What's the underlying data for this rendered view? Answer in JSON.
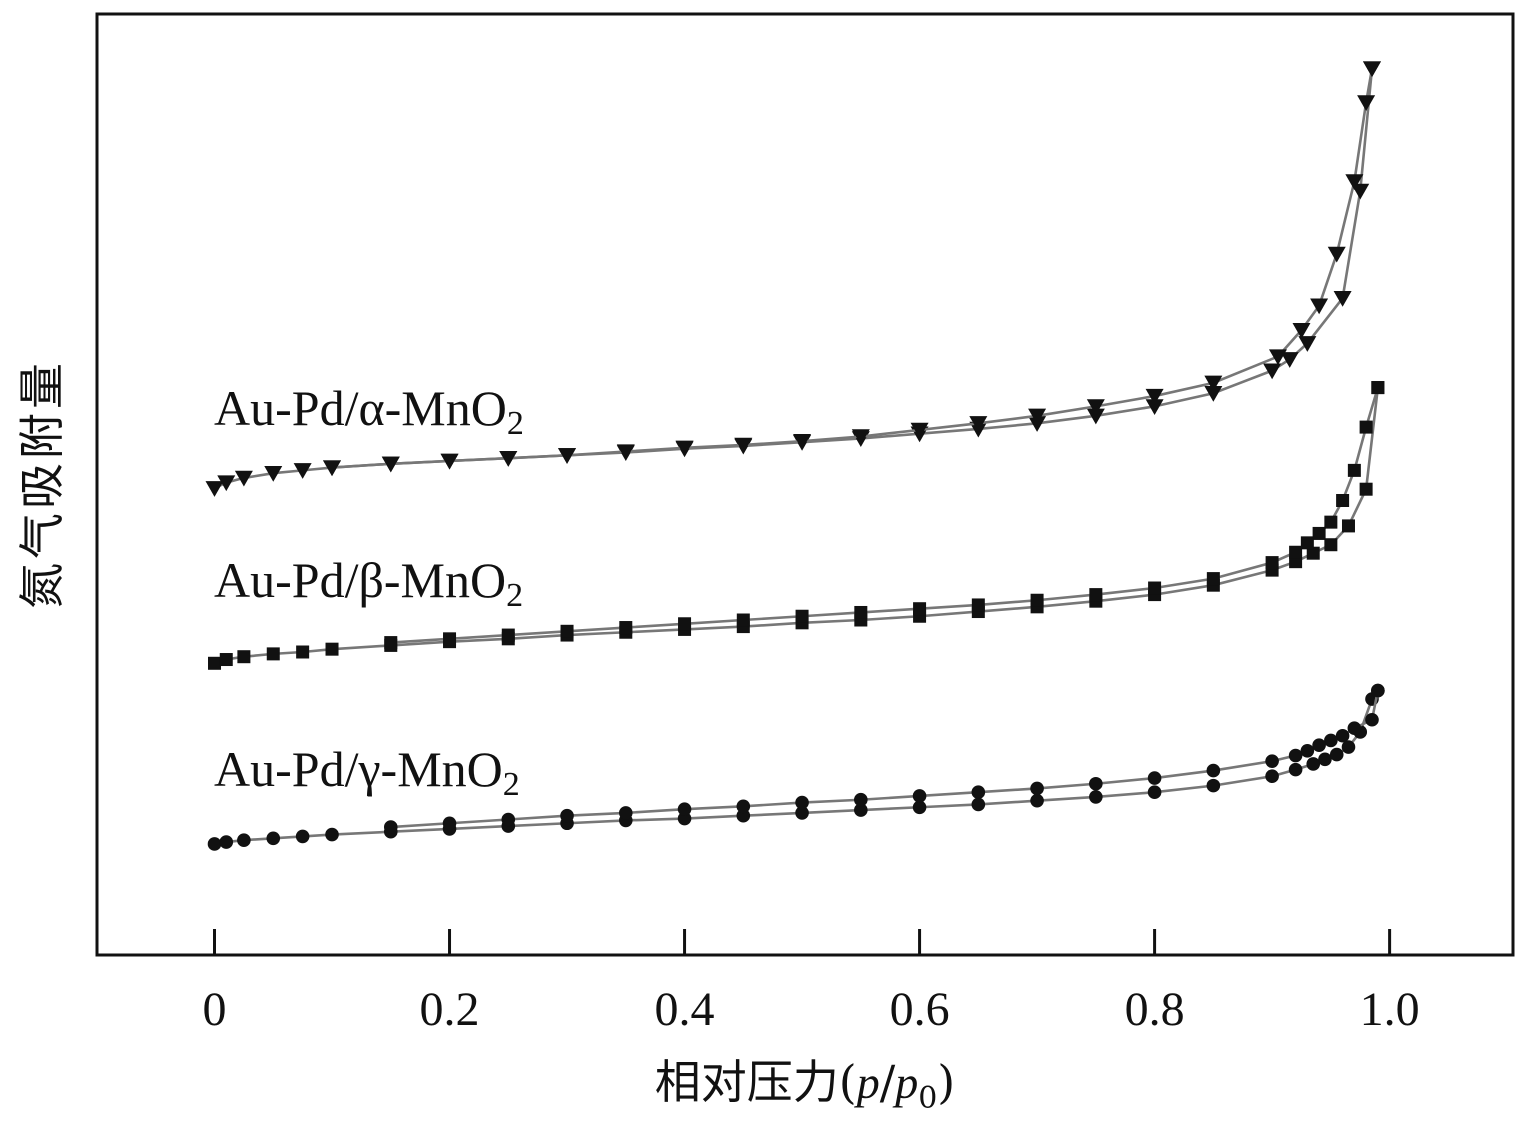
{
  "chart_data": {
    "type": "line",
    "xlabel": "相对压力(p/p0)",
    "xlabel_parts": {
      "prefix": "相对压力(",
      "p": "p",
      "slash": "/",
      "p0": "p",
      "sub": "0",
      "suffix": ")"
    },
    "ylabel": "氮气吸附量",
    "xlim": [
      -0.1,
      1.105
    ],
    "ylim": [
      0,
      100
    ],
    "x_ticks": [
      0,
      0.2,
      0.4,
      0.6,
      0.8,
      1.0
    ],
    "x_tick_labels": [
      "0",
      "0.2",
      "0.4",
      "0.6",
      "0.8",
      "1.0"
    ],
    "y_ticks": [],
    "grid": false,
    "series": [
      {
        "name": "Au-Pd/α-MnO2",
        "label_main": "Au-Pd/α-MnO",
        "label_sub": "2",
        "marker": "triangle-down",
        "adsorption": {
          "x": [
            0.0,
            0.01,
            0.025,
            0.05,
            0.075,
            0.1,
            0.15,
            0.2,
            0.25,
            0.3,
            0.35,
            0.4,
            0.45,
            0.5,
            0.55,
            0.6,
            0.65,
            0.7,
            0.75,
            0.8,
            0.85,
            0.9,
            0.915,
            0.93,
            0.96,
            0.975,
            0.985
          ],
          "y": [
            49.6,
            50.2,
            50.7,
            51.2,
            51.5,
            51.8,
            52.2,
            52.5,
            52.8,
            53.1,
            53.4,
            53.8,
            54.1,
            54.5,
            54.9,
            55.4,
            55.9,
            56.5,
            57.3,
            58.3,
            59.7,
            62.1,
            63.3,
            65.0,
            69.8,
            81.2,
            94.2
          ]
        },
        "desorption": {
          "x": [
            0.985,
            0.98,
            0.97,
            0.955,
            0.94,
            0.925,
            0.905,
            0.85,
            0.8,
            0.75,
            0.7,
            0.65,
            0.6,
            0.55,
            0.5,
            0.45,
            0.4,
            0.35,
            0.3,
            0.25,
            0.2,
            0.15,
            0.1
          ],
          "y": [
            94.2,
            90.6,
            82.2,
            74.5,
            69.0,
            66.4,
            63.6,
            60.8,
            59.4,
            58.3,
            57.3,
            56.5,
            55.8,
            55.1,
            54.6,
            54.2,
            53.9,
            53.5,
            53.1,
            52.8,
            52.5,
            52.2,
            51.8
          ]
        }
      },
      {
        "name": "Au-Pd/β-MnO2",
        "label_main": "Au-Pd/β-MnO",
        "label_sub": "2",
        "marker": "square",
        "adsorption": {
          "x": [
            0.0,
            0.01,
            0.025,
            0.05,
            0.075,
            0.1,
            0.15,
            0.2,
            0.25,
            0.3,
            0.35,
            0.4,
            0.45,
            0.5,
            0.55,
            0.6,
            0.65,
            0.7,
            0.75,
            0.8,
            0.85,
            0.9,
            0.92,
            0.935,
            0.95,
            0.965,
            0.98,
            0.99
          ],
          "y": [
            31.0,
            31.4,
            31.7,
            32.0,
            32.2,
            32.5,
            32.9,
            33.3,
            33.6,
            34.0,
            34.3,
            34.6,
            34.9,
            35.3,
            35.6,
            36.0,
            36.5,
            37.0,
            37.6,
            38.3,
            39.3,
            40.9,
            41.8,
            42.7,
            43.6,
            45.6,
            49.5,
            60.3
          ]
        },
        "desorption": {
          "x": [
            0.99,
            0.98,
            0.97,
            0.96,
            0.95,
            0.94,
            0.93,
            0.92,
            0.9,
            0.85,
            0.8,
            0.75,
            0.7,
            0.65,
            0.6,
            0.55,
            0.5,
            0.45,
            0.4,
            0.35,
            0.3,
            0.25,
            0.2,
            0.15
          ],
          "y": [
            60.3,
            56.1,
            51.5,
            48.3,
            46.0,
            44.8,
            43.8,
            42.8,
            41.7,
            40.0,
            39.0,
            38.3,
            37.7,
            37.2,
            36.8,
            36.4,
            36.0,
            35.6,
            35.2,
            34.8,
            34.4,
            34.0,
            33.6,
            33.2
          ]
        }
      },
      {
        "name": "Au-Pd/γ-MnO2",
        "label_main": "Au-Pd/γ-MnO",
        "label_sub": "2",
        "marker": "circle",
        "adsorption": {
          "x": [
            0.0,
            0.01,
            0.025,
            0.05,
            0.075,
            0.1,
            0.15,
            0.2,
            0.25,
            0.3,
            0.35,
            0.4,
            0.45,
            0.5,
            0.55,
            0.6,
            0.65,
            0.7,
            0.75,
            0.8,
            0.85,
            0.9,
            0.92,
            0.935,
            0.945,
            0.955,
            0.965,
            0.975,
            0.985,
            0.99
          ],
          "y": [
            11.8,
            12.0,
            12.2,
            12.4,
            12.6,
            12.8,
            13.1,
            13.4,
            13.7,
            14.0,
            14.3,
            14.5,
            14.8,
            15.1,
            15.4,
            15.7,
            16.0,
            16.4,
            16.8,
            17.3,
            18.0,
            19.0,
            19.7,
            20.3,
            20.8,
            21.3,
            22.1,
            23.7,
            27.2,
            28.1
          ]
        },
        "desorption": {
          "x": [
            0.99,
            0.985,
            0.97,
            0.96,
            0.95,
            0.94,
            0.93,
            0.92,
            0.9,
            0.85,
            0.8,
            0.75,
            0.7,
            0.65,
            0.6,
            0.55,
            0.5,
            0.45,
            0.4,
            0.35,
            0.3,
            0.25,
            0.2,
            0.15
          ],
          "y": [
            28.1,
            25.0,
            24.1,
            23.3,
            22.8,
            22.3,
            21.7,
            21.2,
            20.6,
            19.6,
            18.8,
            18.2,
            17.7,
            17.3,
            16.9,
            16.5,
            16.2,
            15.8,
            15.5,
            15.1,
            14.8,
            14.4,
            14.0,
            13.6
          ]
        }
      }
    ]
  }
}
